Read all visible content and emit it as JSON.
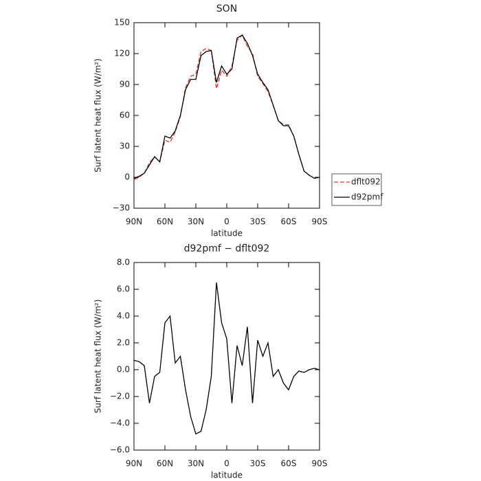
{
  "chart_data": [
    {
      "type": "line",
      "title": "SON",
      "x_label": "latitude",
      "y_label": "Surf latent heat flux (W/m²)",
      "x": [
        90,
        85,
        80,
        75,
        70,
        65,
        60,
        55,
        50,
        45,
        40,
        35,
        30,
        25,
        20,
        15,
        10,
        5,
        0,
        -5,
        -10,
        -15,
        -20,
        -25,
        -30,
        -35,
        -40,
        -45,
        -50,
        -55,
        -60,
        -65,
        -70,
        -75,
        -80,
        -85,
        -90
      ],
      "series": [
        {
          "name": "dflt092",
          "color": "#e03030",
          "dashed": true,
          "values": [
            -2,
            0,
            4,
            14,
            20,
            15,
            36,
            34,
            44,
            59,
            87,
            98,
            100,
            122,
            125,
            123,
            86,
            104,
            98,
            108,
            133,
            138,
            127,
            120,
            98,
            91,
            83,
            70,
            55,
            51,
            51,
            40,
            22,
            6,
            2,
            -1,
            0
          ]
        },
        {
          "name": "d92pmf",
          "color": "#000000",
          "dashed": false,
          "values": [
            -1,
            1,
            4,
            12,
            20,
            15,
            40,
            38,
            45,
            60,
            85,
            95,
            95,
            118,
            122,
            123,
            92,
            108,
            100,
            105,
            135,
            138,
            130,
            118,
            100,
            92,
            85,
            70,
            55,
            50,
            50,
            40,
            22,
            6,
            2,
            -1,
            0
          ]
        }
      ],
      "xlim": [
        90,
        -90
      ],
      "xticks": [
        {
          "value": 90,
          "label": "90N"
        },
        {
          "value": 60,
          "label": "60N"
        },
        {
          "value": 30,
          "label": "30N"
        },
        0,
        {
          "value": -30,
          "label": "30S"
        },
        {
          "value": -60,
          "label": "60S"
        },
        {
          "value": -90,
          "label": "90S"
        }
      ],
      "ylim": [
        -30,
        150
      ],
      "yticks": [
        {
          "value": -30,
          "label": "−30"
        },
        0,
        30,
        60,
        90,
        120,
        150
      ],
      "legend": "right"
    },
    {
      "type": "line",
      "title": "d92pmf − dflt092",
      "x_label": "latitude",
      "y_label": "Surf latent heat flux (W/m²)",
      "x": [
        90,
        85,
        80,
        75,
        70,
        65,
        60,
        55,
        50,
        45,
        40,
        35,
        30,
        25,
        20,
        15,
        10,
        5,
        0,
        -5,
        -10,
        -15,
        -20,
        -25,
        -30,
        -35,
        -40,
        -45,
        -50,
        -55,
        -60,
        -65,
        -70,
        -75,
        -80,
        -85,
        -90
      ],
      "series": [
        {
          "color": "#000000",
          "dashed": false,
          "values": [
            0.7,
            0.6,
            0.3,
            -2.5,
            -0.5,
            -0.2,
            3.5,
            4.0,
            0.5,
            1.0,
            -1.5,
            -3.5,
            -4.8,
            -4.6,
            -3.0,
            -0.5,
            6.5,
            3.5,
            2.3,
            -2.5,
            1.8,
            0.3,
            3.2,
            -2.5,
            2.2,
            1.0,
            2.0,
            -0.5,
            0.0,
            -1.0,
            -1.5,
            -0.5,
            -0.1,
            -0.2,
            0.0,
            0.1,
            0.0
          ]
        }
      ],
      "xlim": [
        90,
        -90
      ],
      "xticks": [
        {
          "value": 90,
          "label": "90N"
        },
        {
          "value": 60,
          "label": "60N"
        },
        {
          "value": 30,
          "label": "30N"
        },
        0,
        {
          "value": -30,
          "label": "30S"
        },
        {
          "value": -60,
          "label": "60S"
        },
        {
          "value": -90,
          "label": "90S"
        }
      ],
      "ylim": [
        -6,
        8
      ],
      "yticks": [
        {
          "value": -6,
          "label": "−6.0"
        },
        {
          "value": -4,
          "label": "−4.0"
        },
        {
          "value": -2,
          "label": "−2.0"
        },
        {
          "value": 0,
          "label": "0.0"
        },
        {
          "value": 2,
          "label": "2.0"
        },
        {
          "value": 4,
          "label": "4.0"
        },
        {
          "value": 6,
          "label": "6.0"
        },
        {
          "value": 8,
          "label": "8.0"
        }
      ]
    }
  ]
}
